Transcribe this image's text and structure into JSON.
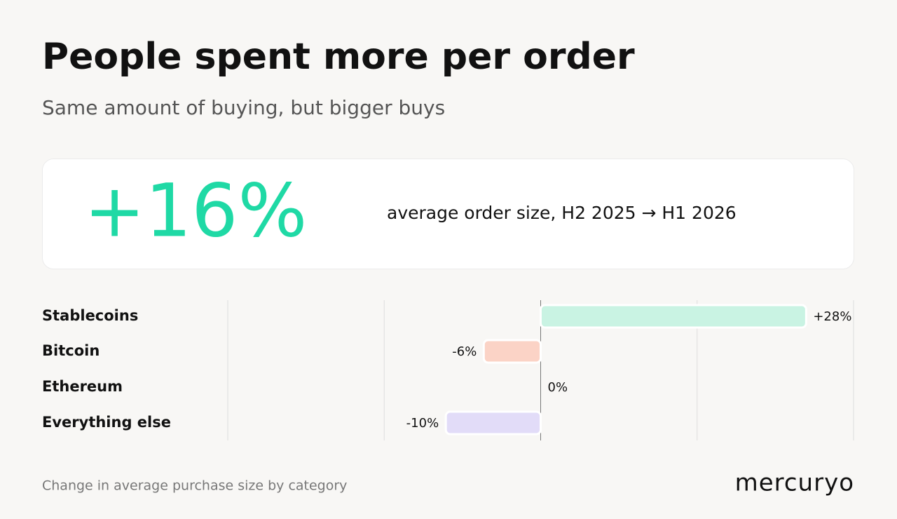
{
  "header": {
    "title": "People spent more per order",
    "subtitle": "Same amount of buying, but bigger buys"
  },
  "highlight": {
    "value": "+16%",
    "caption": "average order size, H2 2025 → H1 2026"
  },
  "chart_data": {
    "type": "hbar",
    "categories": [
      "Stablecoins",
      "Bitcoin",
      "Ethereum",
      "Everything else"
    ],
    "values": [
      28,
      -6,
      0,
      -10
    ],
    "value_labels": [
      "+28%",
      "-6%",
      "0%",
      "-10%"
    ],
    "colors": [
      "#c9f3e3",
      "#fbd3c6",
      "#e6e6e6",
      "#e2dcf8"
    ],
    "xlim": [
      -33,
      33
    ],
    "xticks": [
      -33,
      -16.5,
      0,
      16.5,
      33
    ],
    "grid": true
  },
  "footer": {
    "note": "Change in average purchase size by category",
    "brand": "mercuryo"
  }
}
